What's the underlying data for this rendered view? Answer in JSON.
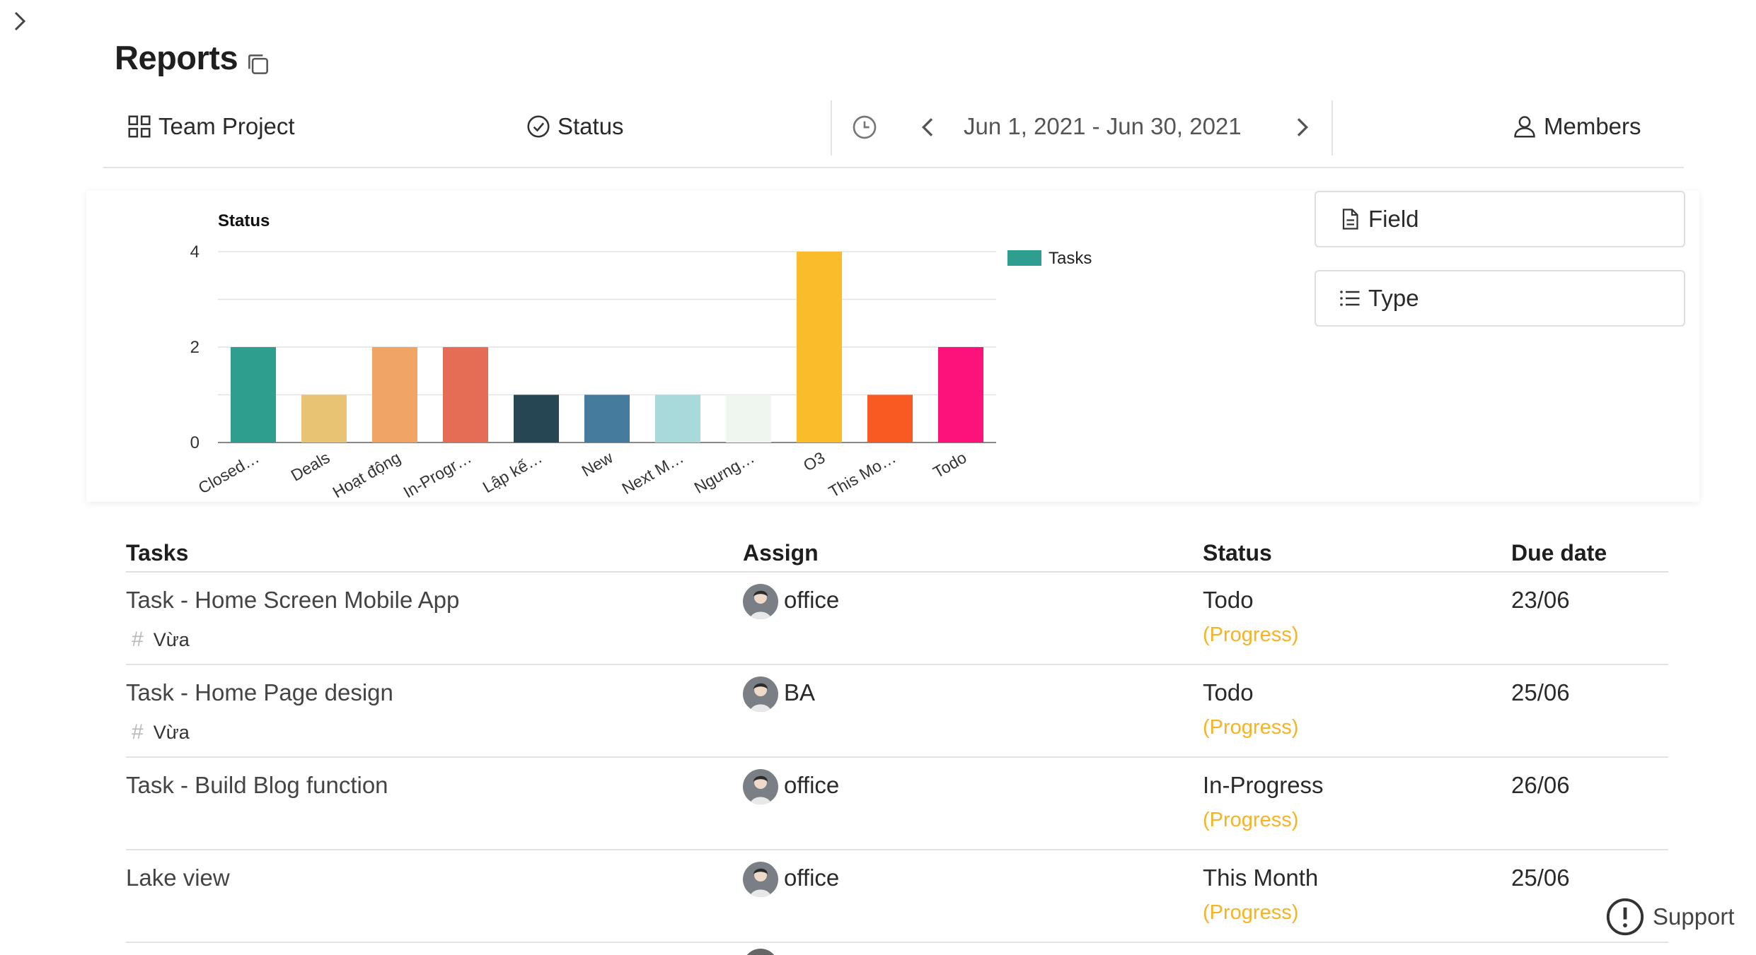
{
  "page": {
    "title": "Reports"
  },
  "toolbar": {
    "project_label": "Team Project",
    "status_label": "Status",
    "date_range": "Jun 1, 2021 - Jun 30, 2021",
    "members_label": "Members"
  },
  "side_panel": {
    "field_label": "Field",
    "type_label": "Type"
  },
  "chart_data": {
    "type": "bar",
    "title": "Status",
    "legend": "Tasks",
    "legend_position": "right",
    "categories": [
      "Closed…",
      "Deals",
      "Hoạt động",
      "In-Progr…",
      "Lập kế…",
      "New",
      "Next M…",
      "Ngưng…",
      "O3",
      "This Mo…",
      "Todo"
    ],
    "values": [
      2,
      1,
      2,
      2,
      1,
      1,
      1,
      1,
      4,
      1,
      2
    ],
    "colors": [
      "#2e9e8e",
      "#e8c373",
      "#f0a465",
      "#e56d56",
      "#264653",
      "#457b9d",
      "#a8dadc",
      "#eef6ef",
      "#fbbc2c",
      "#f95a22",
      "#fc127a"
    ],
    "ylim": [
      0,
      4
    ],
    "yticks": [
      0,
      2,
      4
    ],
    "grid": true
  },
  "table": {
    "headers": {
      "tasks": "Tasks",
      "assign": "Assign",
      "status": "Status",
      "due": "Due date"
    },
    "rows": [
      {
        "task": "Task - Home Screen Mobile App",
        "tag": "Vừa",
        "assign": "office",
        "status": "Todo",
        "status_note": "(Progress)",
        "due": "23/06"
      },
      {
        "task": "Task - Home Page design",
        "tag": "Vừa",
        "assign": "BA",
        "status": "Todo",
        "status_note": "(Progress)",
        "due": "25/06"
      },
      {
        "task": "Task - Build Blog function",
        "tag": "",
        "assign": "office",
        "status": "In-Progress",
        "status_note": "(Progress)",
        "due": "26/06"
      },
      {
        "task": "Lake view",
        "tag": "",
        "assign": "office",
        "status": "This Month",
        "status_note": "(Progress)",
        "due": "25/06"
      }
    ]
  },
  "support": {
    "label": "Support"
  }
}
